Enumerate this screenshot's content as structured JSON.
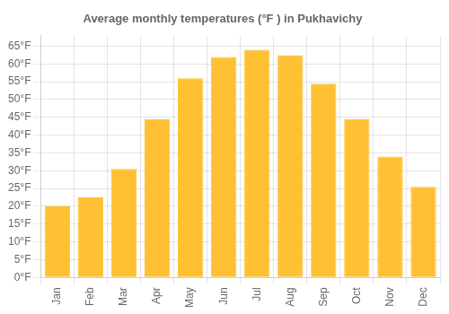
{
  "chart_data": {
    "type": "bar",
    "title": "Average monthly temperatures (°F ) in Pukhavichy",
    "categories": [
      "Jan",
      "Feb",
      "Mar",
      "Apr",
      "May",
      "Jun",
      "Jul",
      "Aug",
      "Sep",
      "Oct",
      "Nov",
      "Dec"
    ],
    "values": [
      20,
      22.5,
      30.5,
      44.5,
      56,
      62,
      64,
      62.5,
      54.5,
      44.5,
      34,
      25.5
    ],
    "color": "#FFC033",
    "ylim": [
      0,
      68
    ],
    "yticks": [
      {
        "value": 0,
        "label": "0°F"
      },
      {
        "value": 5,
        "label": "5°F"
      },
      {
        "value": 10,
        "label": "10°F"
      },
      {
        "value": 15,
        "label": "15°F"
      },
      {
        "value": 20,
        "label": "20°F"
      },
      {
        "value": 25,
        "label": "25°F"
      },
      {
        "value": 30,
        "label": "30°F"
      },
      {
        "value": 35,
        "label": "35°F"
      },
      {
        "value": 40,
        "label": "40°F"
      },
      {
        "value": 45,
        "label": "45°F"
      },
      {
        "value": 50,
        "label": "50°F"
      },
      {
        "value": 55,
        "label": "55°F"
      },
      {
        "value": 60,
        "label": "60°F"
      },
      {
        "value": 65,
        "label": "65°F"
      }
    ],
    "grid": true
  }
}
